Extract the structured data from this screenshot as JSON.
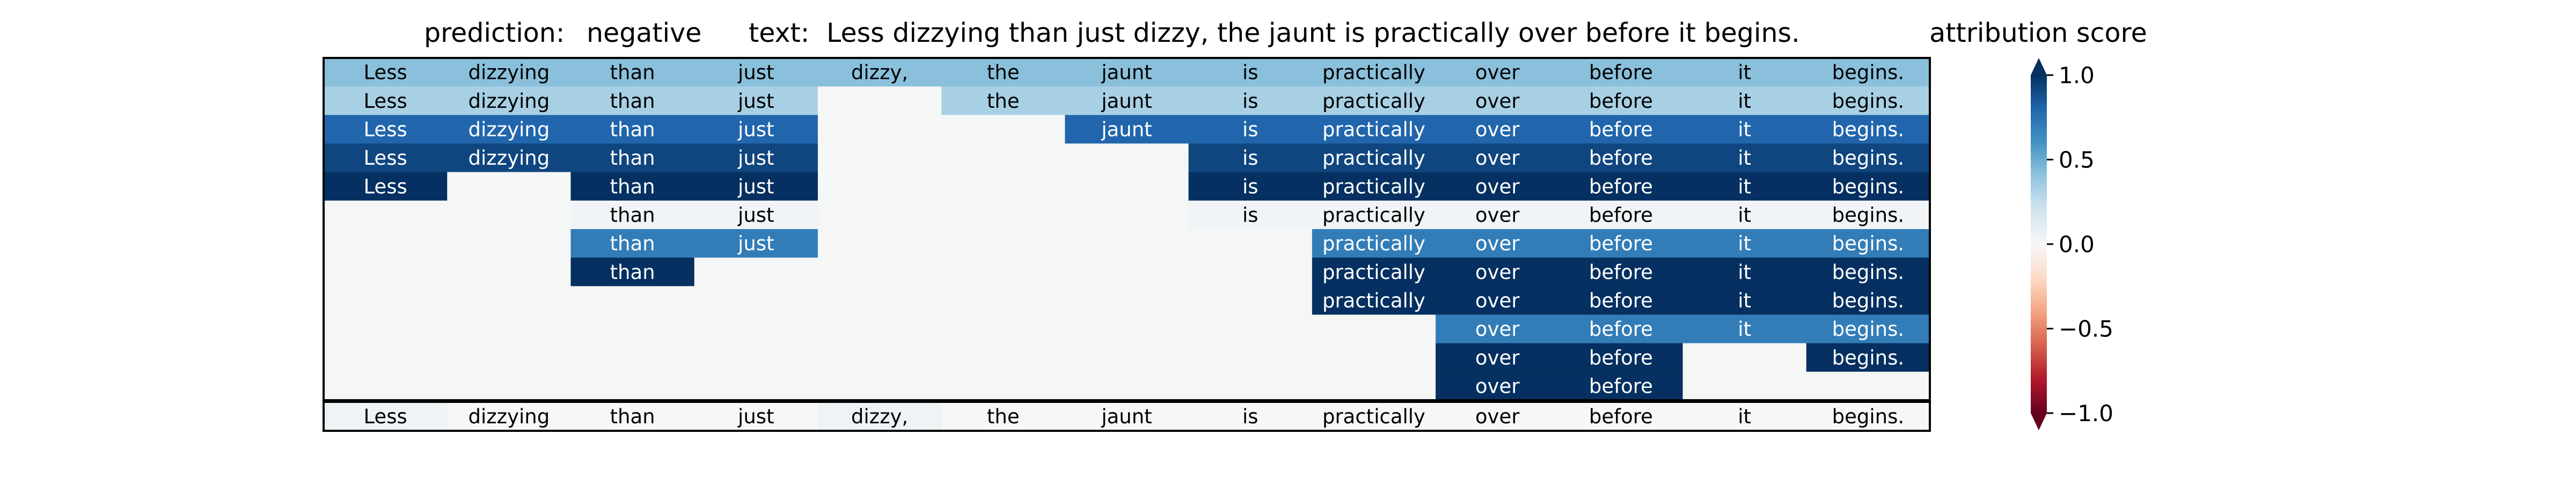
{
  "chart_data": {
    "type": "heatmap",
    "header": {
      "prediction_label": "prediction:",
      "prediction_value": "negative",
      "text_label": "text:",
      "text_value": "Less dizzying than just dizzy, the jaunt is practically over before it begins."
    },
    "tokens": [
      "Less",
      "dizzying",
      "than",
      "just",
      "dizzy,",
      "the",
      "jaunt",
      "is",
      "practically",
      "over",
      "before",
      "it",
      "begins."
    ],
    "rows": [
      [
        0.42,
        0.42,
        0.42,
        0.42,
        0.42,
        0.42,
        0.42,
        0.42,
        0.42,
        0.42,
        0.42,
        0.42,
        0.42
      ],
      [
        0.33,
        0.33,
        0.33,
        0.33,
        null,
        0.33,
        0.33,
        0.33,
        0.33,
        0.33,
        0.33,
        0.33,
        0.33
      ],
      [
        0.8,
        0.8,
        0.8,
        0.8,
        null,
        null,
        0.8,
        0.8,
        0.8,
        0.8,
        0.8,
        0.8,
        0.8
      ],
      [
        0.92,
        0.92,
        0.92,
        0.92,
        null,
        null,
        null,
        0.92,
        0.92,
        0.92,
        0.92,
        0.92,
        0.92
      ],
      [
        1.0,
        null,
        1.0,
        1.0,
        null,
        null,
        null,
        1.0,
        1.0,
        1.0,
        1.0,
        1.0,
        1.0
      ],
      [
        null,
        null,
        0.03,
        0.03,
        null,
        null,
        null,
        0.03,
        0.03,
        0.03,
        0.03,
        0.03,
        0.03
      ],
      [
        null,
        null,
        0.7,
        0.7,
        null,
        null,
        null,
        null,
        0.7,
        0.7,
        0.7,
        0.7,
        0.7
      ],
      [
        null,
        null,
        1.0,
        null,
        null,
        null,
        null,
        null,
        1.0,
        1.0,
        1.0,
        1.0,
        1.0
      ],
      [
        null,
        null,
        null,
        null,
        null,
        null,
        null,
        null,
        1.0,
        1.0,
        1.0,
        1.0,
        1.0
      ],
      [
        null,
        null,
        null,
        null,
        null,
        null,
        null,
        null,
        null,
        0.7,
        0.7,
        0.7,
        0.7
      ],
      [
        null,
        null,
        null,
        null,
        null,
        null,
        null,
        null,
        null,
        1.0,
        1.0,
        null,
        1.0
      ],
      [
        null,
        null,
        null,
        null,
        null,
        null,
        null,
        null,
        null,
        1.0,
        1.0,
        null,
        null
      ]
    ],
    "token_scores": [
      0.05,
      0.0,
      0.0,
      0.0,
      0.05,
      0.0,
      0.0,
      0.0,
      0.0,
      0.0,
      0.0,
      0.0,
      0.0
    ],
    "colorbar": {
      "label": "attribution score",
      "range": [
        -1.0,
        1.0
      ],
      "ticks": [
        1.0,
        0.5,
        0.0,
        -0.5,
        -1.0
      ],
      "tick_labels": [
        "1.0",
        "0.5",
        "0.0",
        "−0.5",
        "−1.0"
      ]
    },
    "empty_color": "#f5f6f6",
    "colormap": "RdBu"
  }
}
